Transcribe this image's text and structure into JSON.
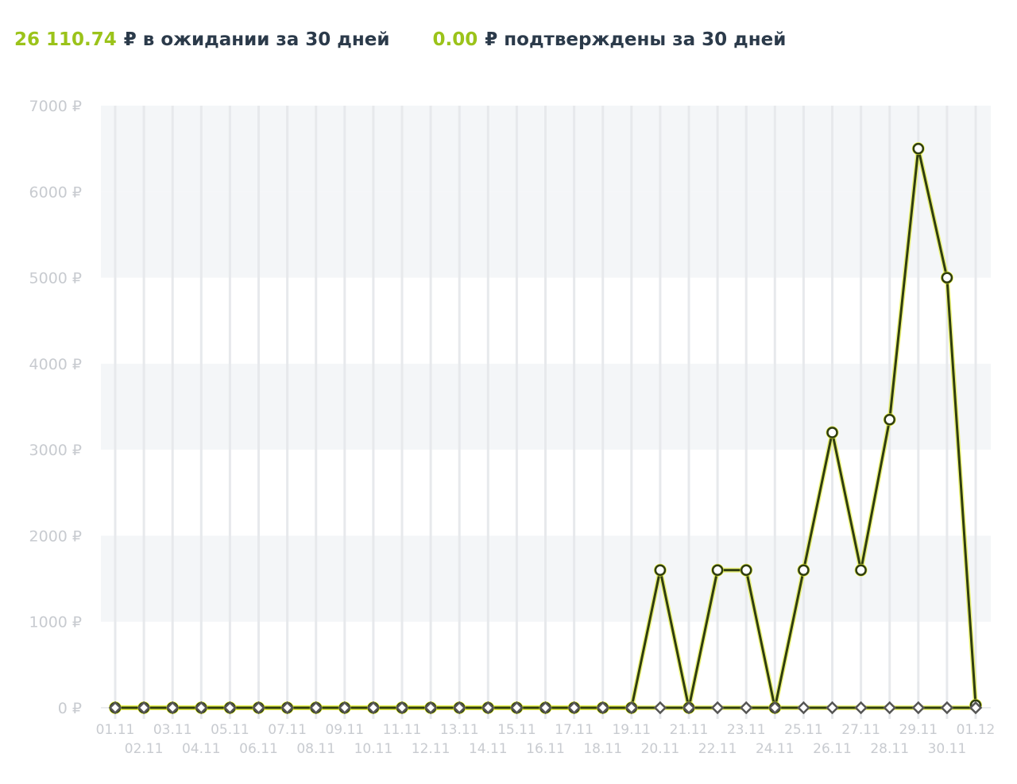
{
  "summary": {
    "pending": {
      "amount": "26 110.74",
      "currency": "₽",
      "label": "в ожидании за 30 дней"
    },
    "confirmed": {
      "amount": "0.00",
      "currency": "₽",
      "label": "подтверждены за 30 дней"
    }
  },
  "colors": {
    "accent": "#9bc31a",
    "line": "#2f3d0f",
    "halo": "#e3ef2a",
    "band": "#f4f6f8",
    "grid": "#e7e9ec",
    "text": "#2b3a4a",
    "axis_text": "#c8cbd0",
    "zero_marker": "#555555"
  },
  "chart_data": {
    "type": "line",
    "ylim": [
      0,
      7000
    ],
    "y_ticks": [
      0,
      1000,
      2000,
      3000,
      4000,
      5000,
      6000,
      7000
    ],
    "y_tick_suffix": " ₽",
    "grid": true,
    "x": [
      "01.11",
      "02.11",
      "03.11",
      "04.11",
      "05.11",
      "06.11",
      "07.11",
      "08.11",
      "09.11",
      "10.11",
      "11.11",
      "12.11",
      "13.11",
      "14.11",
      "15.11",
      "16.11",
      "17.11",
      "18.11",
      "19.11",
      "20.11",
      "21.11",
      "22.11",
      "23.11",
      "24.11",
      "25.11",
      "26.11",
      "27.11",
      "28.11",
      "29.11",
      "30.11",
      "01.12"
    ],
    "series": [
      {
        "marker": "circle",
        "values": [
          0,
          0,
          0,
          0,
          0,
          0,
          0,
          0,
          0,
          0,
          0,
          0,
          0,
          0,
          0,
          0,
          0,
          0,
          0,
          1600,
          0,
          1600,
          1600,
          0,
          1600,
          3200,
          1600,
          3350,
          6500,
          5000,
          30
        ]
      },
      {
        "marker": "diamond",
        "values": [
          0,
          0,
          0,
          0,
          0,
          0,
          0,
          0,
          0,
          0,
          0,
          0,
          0,
          0,
          0,
          0,
          0,
          0,
          0,
          0,
          0,
          0,
          0,
          0,
          0,
          0,
          0,
          0,
          0,
          0,
          0
        ]
      }
    ]
  }
}
